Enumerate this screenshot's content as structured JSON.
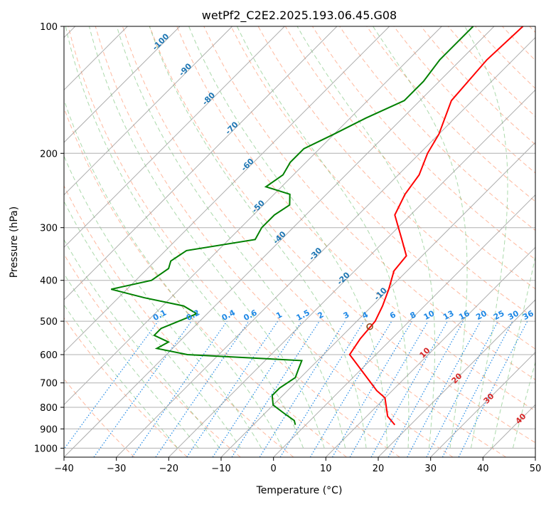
{
  "chart_data": {
    "type": "line",
    "subtype": "skew-t log-p",
    "title": "wetPf2_C2E2.2025.193.06.45.G08",
    "xlabel": "Temperature (°C)",
    "ylabel": "Pressure (hPa)",
    "xlim": [
      -40,
      50
    ],
    "ylim": [
      1050,
      100
    ],
    "y_scale": "log",
    "grid": true,
    "x_ticks": [
      "−40",
      "−30",
      "−20",
      "−10",
      "0",
      "10",
      "20",
      "30",
      "40",
      "50"
    ],
    "x_tick_values": [
      -40,
      -30,
      -20,
      -10,
      0,
      10,
      20,
      30,
      40,
      50
    ],
    "y_ticks": [
      "100",
      "200",
      "300",
      "400",
      "500",
      "600",
      "700",
      "800",
      "900",
      "1000"
    ],
    "y_tick_values": [
      100,
      200,
      300,
      400,
      500,
      600,
      700,
      800,
      900,
      1000
    ],
    "colors": {
      "temperature": "#ff0000",
      "dewpoint": "#008000",
      "isotherm": "#999999",
      "dry_adiabat": "#ff7f50",
      "moist_adiabat": "#2ca02c",
      "mixing_ratio": "#1e88e5",
      "isotherm_label": "#1f77b4",
      "moist_label": "#d62728",
      "ccl_marker": "#8b4513"
    },
    "series": [
      {
        "key": "temperature",
        "points": [
          [
            -34.5,
            100
          ],
          [
            -35,
            120
          ],
          [
            -34,
            150
          ],
          [
            -30,
            180
          ],
          [
            -28.5,
            200
          ],
          [
            -26,
            225
          ],
          [
            -25,
            250
          ],
          [
            -23,
            280
          ],
          [
            -17,
            320
          ],
          [
            -13,
            350
          ],
          [
            -12.5,
            380
          ],
          [
            -10,
            420
          ],
          [
            -8,
            460
          ],
          [
            -6.5,
            500
          ],
          [
            -6,
            550
          ],
          [
            -5,
            600
          ],
          [
            -2,
            630
          ],
          [
            7,
            730
          ],
          [
            10,
            760
          ],
          [
            14,
            840
          ],
          [
            17,
            880
          ]
        ]
      },
      {
        "key": "dewpoint",
        "points": [
          [
            -44,
            100
          ],
          [
            -44,
            120
          ],
          [
            -43,
            135
          ],
          [
            -43,
            150
          ],
          [
            -47,
            165
          ],
          [
            -50,
            180
          ],
          [
            -53,
            195
          ],
          [
            -53,
            210
          ],
          [
            -52,
            225
          ],
          [
            -53,
            240
          ],
          [
            -47,
            250
          ],
          [
            -45,
            265
          ],
          [
            -46,
            280
          ],
          [
            -46,
            300
          ],
          [
            -45,
            320
          ],
          [
            -56,
            340
          ],
          [
            -57,
            360
          ],
          [
            -56,
            375
          ],
          [
            -57,
            400
          ],
          [
            -63,
            420
          ],
          [
            -55,
            440
          ],
          [
            -46,
            460
          ],
          [
            -42,
            480
          ],
          [
            -44,
            500
          ],
          [
            -46,
            520
          ],
          [
            -46,
            540
          ],
          [
            -42,
            560
          ],
          [
            -43,
            580
          ],
          [
            -36,
            600
          ],
          [
            -13,
            620
          ],
          [
            -12,
            650
          ],
          [
            -11,
            680
          ],
          [
            -12,
            720
          ],
          [
            -12,
            750
          ],
          [
            -10,
            790
          ],
          [
            -6,
            830
          ],
          [
            -3,
            860
          ],
          [
            -2,
            880
          ]
        ]
      }
    ],
    "isotherm_labels": [
      "-100",
      "-90",
      "-80",
      "-70",
      "-60",
      "-50",
      "-40",
      "-30",
      "-20",
      "-10"
    ],
    "isotherm_label_values": [
      -100,
      -90,
      -80,
      -70,
      -60,
      -50,
      -40,
      -30,
      -20,
      -10
    ],
    "mixing_ratio_labels": [
      "0.1",
      "0.2",
      "0.4",
      "0.6",
      "1",
      "1.5",
      "2",
      "3",
      "4",
      "6",
      "8",
      "10",
      "13",
      "16",
      "20",
      "25",
      "30",
      "36"
    ],
    "mixing_ratio_values": [
      0.1,
      0.2,
      0.4,
      0.6,
      1,
      1.5,
      2,
      3,
      4,
      6,
      8,
      10,
      13,
      16,
      20,
      25,
      30,
      36
    ],
    "moist_labels": [
      "10",
      "20",
      "30",
      "40"
    ],
    "moist_label_values": [
      10,
      20,
      30,
      40
    ],
    "ccl": {
      "t": -6.5,
      "p": 515
    }
  }
}
